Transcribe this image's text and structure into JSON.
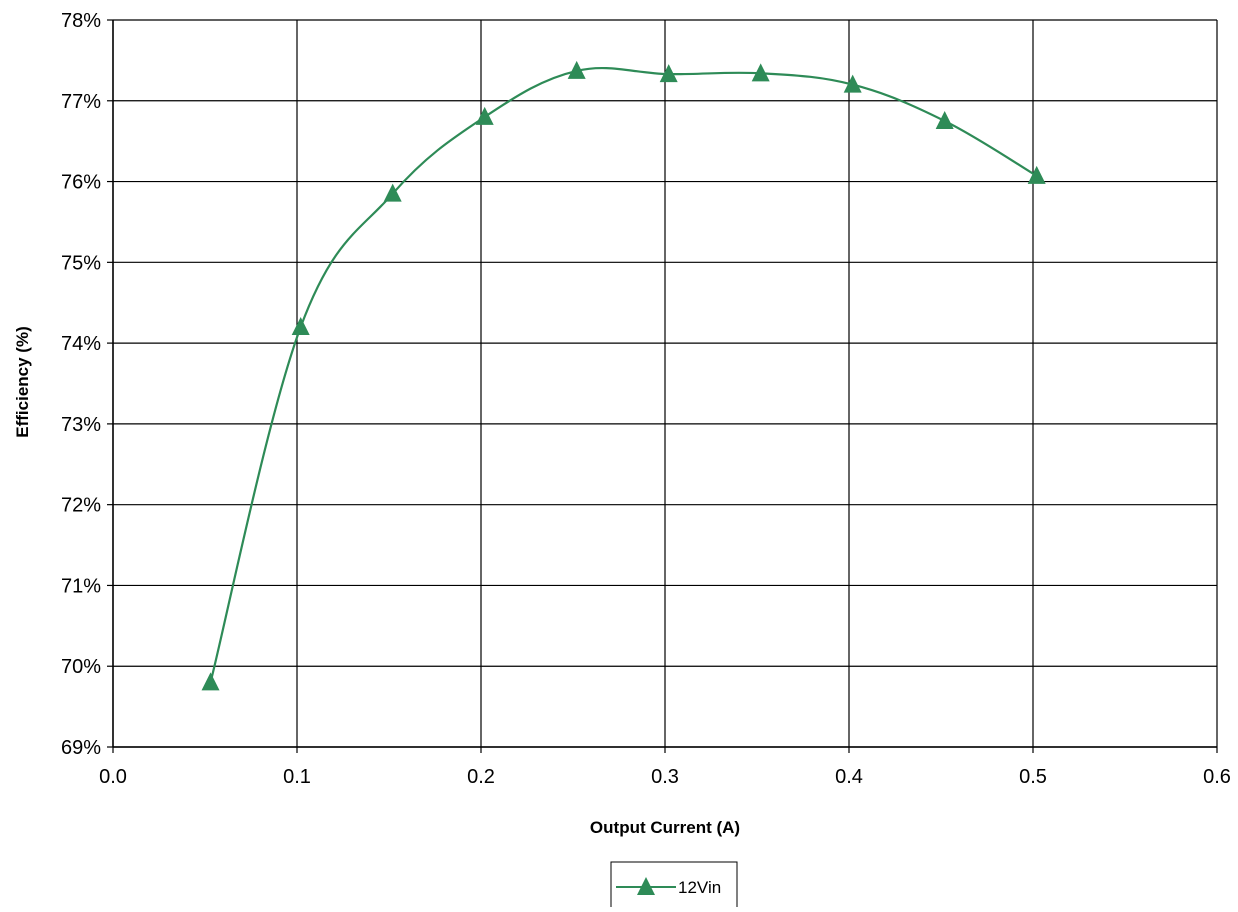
{
  "chart_data": {
    "type": "line",
    "title": "",
    "xlabel": "Output Current (A)",
    "ylabel": "Efficiency (%)",
    "xlim": [
      0.0,
      0.6
    ],
    "ylim": [
      69,
      78
    ],
    "x_ticks": [
      0.0,
      0.1,
      0.2,
      0.3,
      0.4,
      0.5,
      0.6
    ],
    "x_tick_labels": [
      "0.0",
      "0.1",
      "0.2",
      "0.3",
      "0.4",
      "0.5",
      "0.6"
    ],
    "y_ticks": [
      69,
      70,
      71,
      72,
      73,
      74,
      75,
      76,
      77,
      78
    ],
    "y_tick_labels": [
      "69%",
      "70%",
      "71%",
      "72%",
      "73%",
      "74%",
      "75%",
      "76%",
      "77%",
      "78%"
    ],
    "grid": true,
    "legend_position": "bottom-center",
    "series": [
      {
        "name": "12Vin",
        "color": "#2e8b57",
        "marker": "triangle",
        "x": [
          0.053,
          0.102,
          0.152,
          0.202,
          0.252,
          0.302,
          0.352,
          0.402,
          0.452,
          0.502
        ],
        "y": [
          69.8,
          74.2,
          75.85,
          76.8,
          77.37,
          77.33,
          77.34,
          77.2,
          76.75,
          76.07
        ]
      }
    ]
  }
}
